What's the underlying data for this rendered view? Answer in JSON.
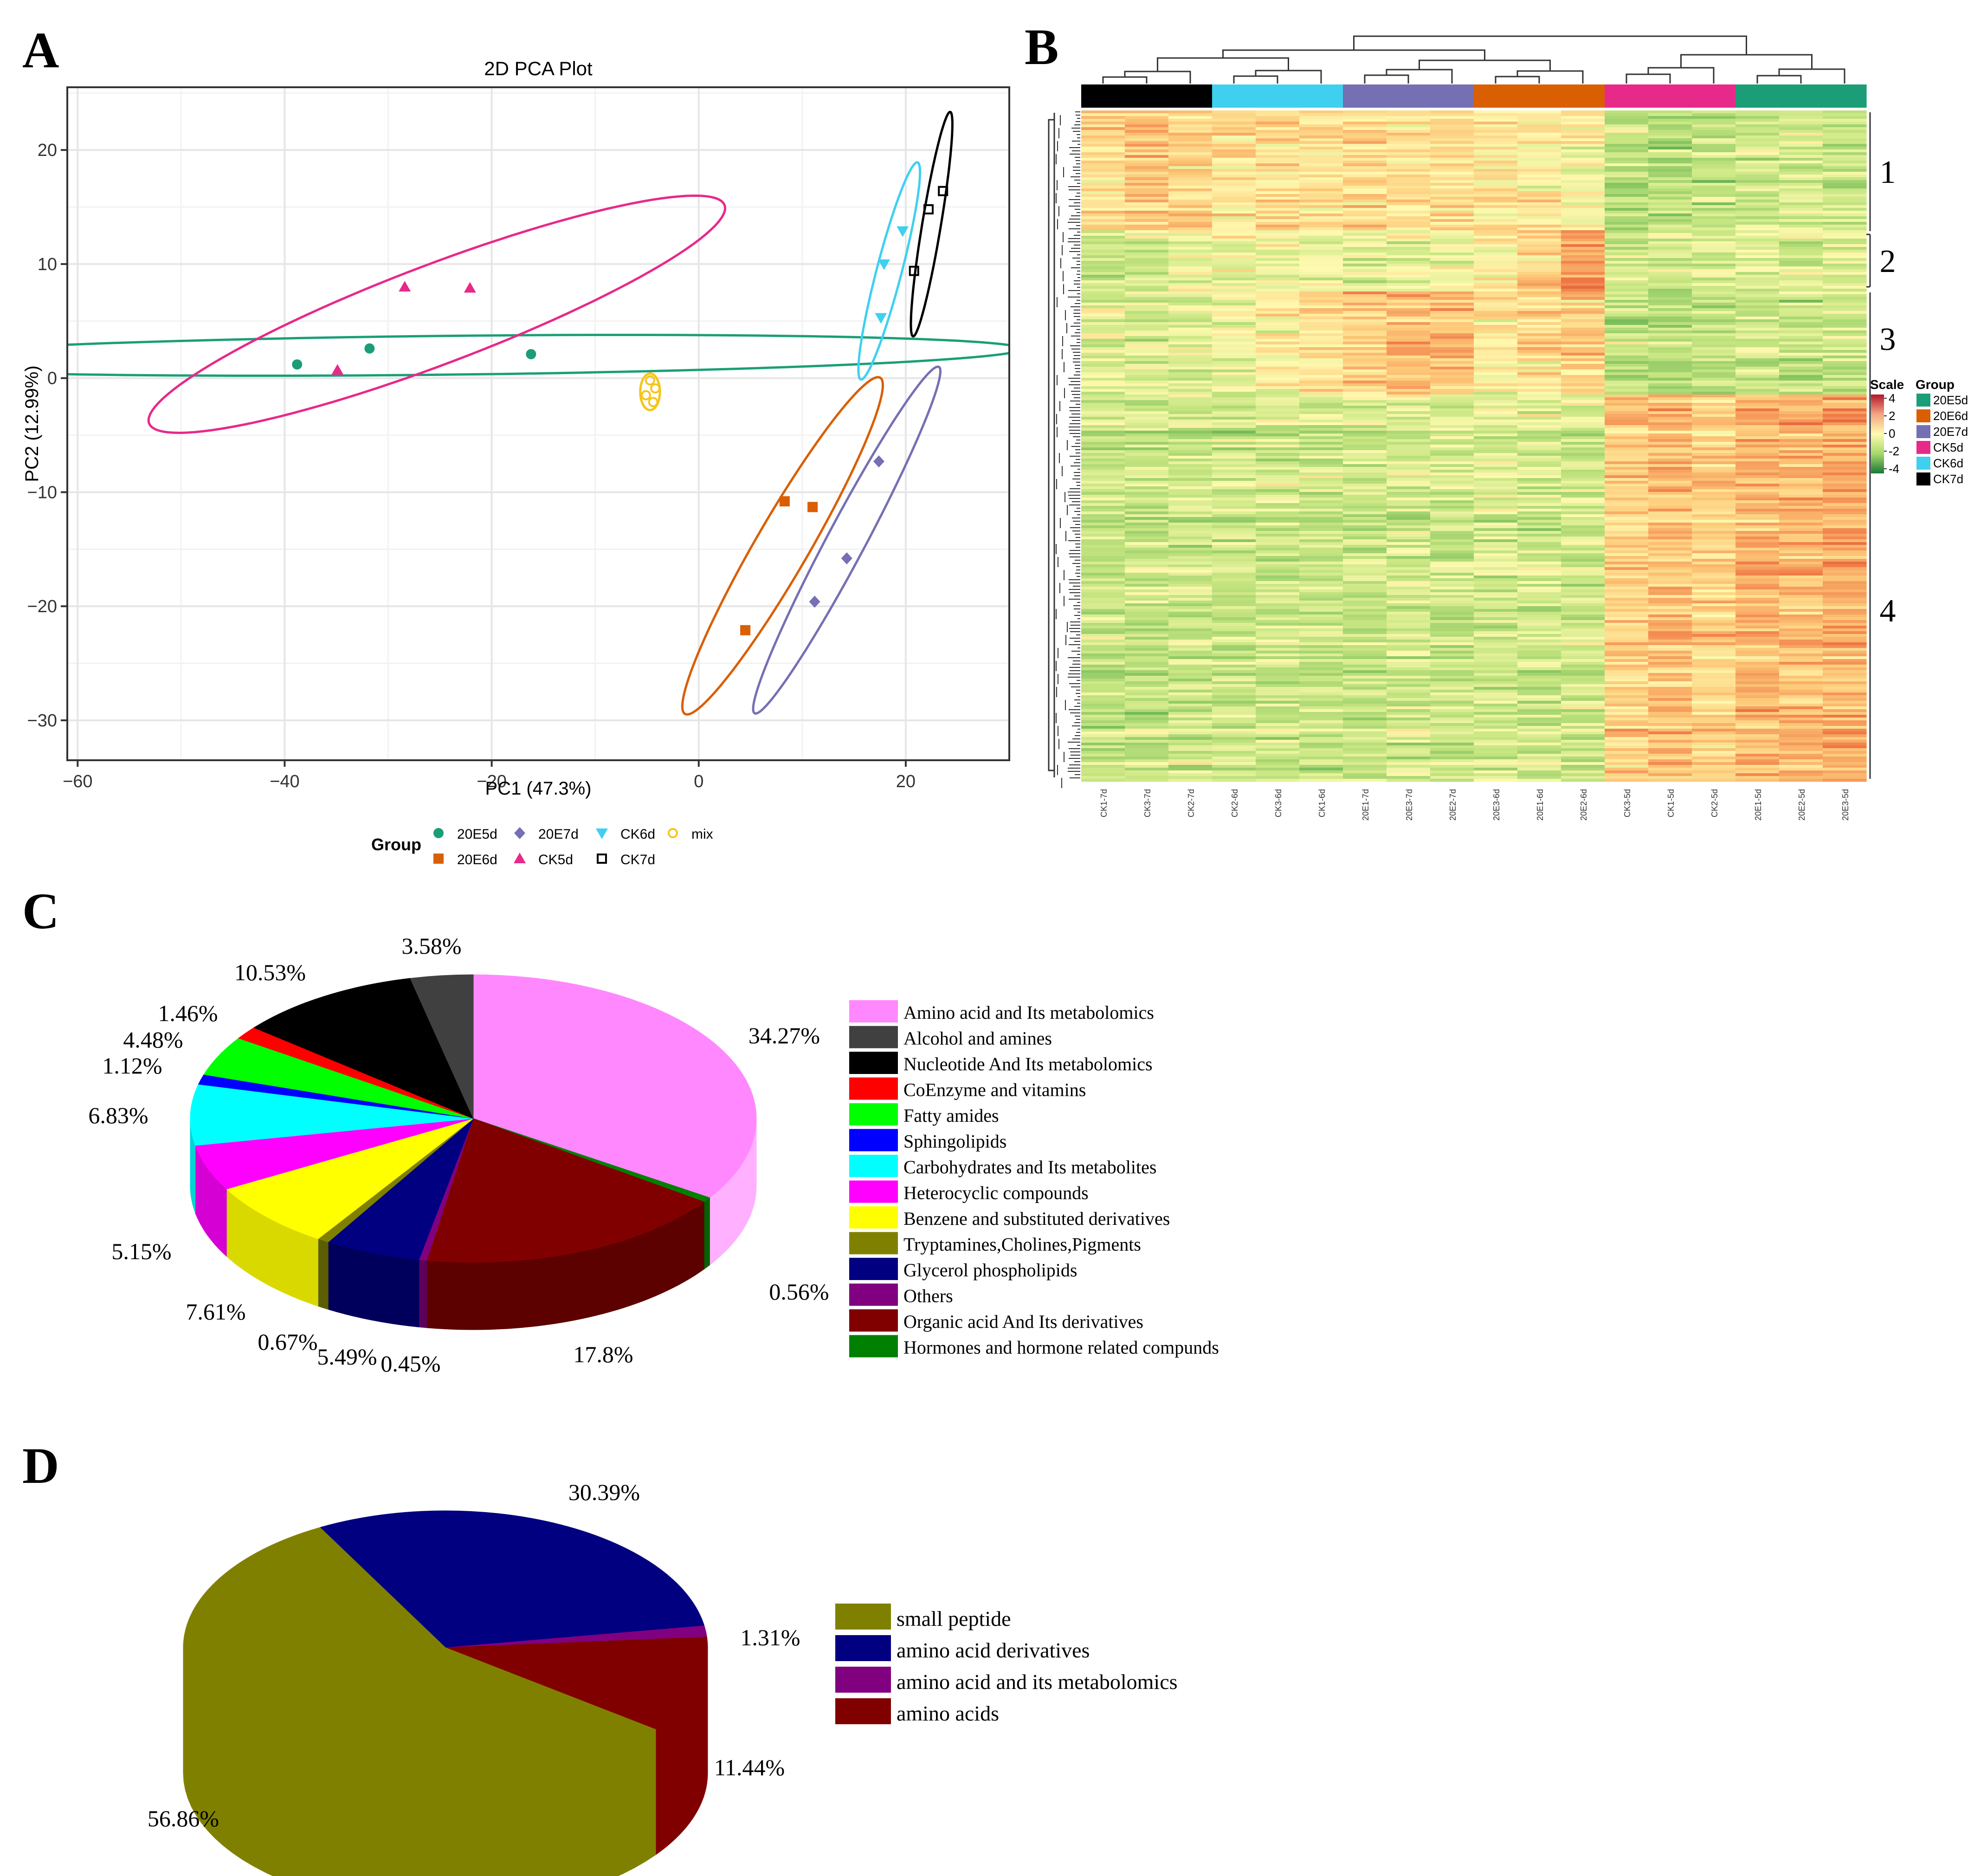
{
  "panels": {
    "a": "A",
    "b": "B",
    "c": "C",
    "d": "D"
  },
  "chart_data": [
    {
      "id": "pca",
      "type": "scatter",
      "title": "2D PCA Plot",
      "xlabel": "PC1 (47.3%)",
      "ylabel": "PC2 (12.99%)",
      "xlim": [
        -61,
        30
      ],
      "ylim": [
        -33.5,
        25.5
      ],
      "xticks": [
        -60,
        -40,
        -20,
        0,
        20
      ],
      "yticks": [
        -30,
        -20,
        -10,
        0,
        10,
        20
      ],
      "xtick_labels": [
        "−60",
        "−40",
        "−20",
        "0",
        "20"
      ],
      "ytick_labels": [
        "−30",
        "−20",
        "−10",
        "0",
        "10",
        "20"
      ],
      "legend_title": "Group",
      "series": [
        {
          "name": "20E5d",
          "color": "#1b9e77",
          "marker": "circle",
          "points": [
            [
              -38.8,
              1.2
            ],
            [
              -31.8,
              2.6
            ],
            [
              -16.2,
              2.1
            ]
          ],
          "ellipse": {
            "cx": -24.7,
            "cy": 2.0,
            "rx": 55.9,
            "ry": 1.7,
            "angle": 0.01
          }
        },
        {
          "name": "20E6d",
          "color": "#d95f02",
          "marker": "square",
          "points": [
            [
              8.3,
              -10.8
            ],
            [
              11.0,
              -11.3
            ],
            [
              4.5,
              -22.1
            ]
          ],
          "ellipse": {
            "cx": 8.1,
            "cy": -14.7,
            "rx": 17.5,
            "ry": 2.5,
            "angle": 1.0
          }
        },
        {
          "name": "20E7d",
          "color": "#7570b3",
          "marker": "diamond",
          "points": [
            [
              17.4,
              -7.3
            ],
            [
              14.3,
              -15.8
            ],
            [
              11.2,
              -19.6
            ]
          ],
          "ellipse": {
            "cx": 14.3,
            "cy": -14.2,
            "rx": 17.6,
            "ry": 1.8,
            "angle": 1.04
          }
        },
        {
          "name": "CK5d",
          "color": "#e7298a",
          "marker": "triangle",
          "points": [
            [
              -28.4,
              8.0
            ],
            [
              -22.1,
              7.9
            ],
            [
              -34.9,
              0.7
            ]
          ],
          "ellipse": {
            "cx": -25.3,
            "cy": 5.6,
            "rx": 29.4,
            "ry": 4.4,
            "angle": 0.33
          }
        },
        {
          "name": "CK6d",
          "color": "#3fd0f0",
          "marker": "triangle-down",
          "points": [
            [
              19.7,
              12.9
            ],
            [
              17.9,
              10.0
            ],
            [
              17.6,
              5.3
            ]
          ],
          "ellipse": {
            "cx": 18.4,
            "cy": 9.4,
            "rx": 9.9,
            "ry": 1.2,
            "angle": 1.29
          }
        },
        {
          "name": "CK7d",
          "color": "#000000",
          "marker": "open-square",
          "points": [
            [
              23.6,
              16.4
            ],
            [
              22.2,
              14.8
            ],
            [
              20.8,
              9.4
            ]
          ],
          "ellipse": {
            "cx": 22.5,
            "cy": 13.5,
            "rx": 10.0,
            "ry": 0.9,
            "angle": 1.39
          }
        },
        {
          "name": "mix",
          "color": "#f5c518",
          "marker": "open-circle",
          "points": [
            [
              -4.7,
              -0.2
            ],
            [
              -4.2,
              -0.9
            ],
            [
              -5.1,
              -1.5
            ],
            [
              -4.4,
              -2.1
            ]
          ],
          "ellipse": {
            "cx": -4.7,
            "cy": -1.2,
            "rx": 1.6,
            "ry": 0.95,
            "angle": 1.57
          }
        }
      ]
    },
    {
      "id": "heatmap",
      "type": "heatmap",
      "columns": [
        "CK1-7d",
        "CK3-7d",
        "CK2-7d",
        "CK2-6d",
        "CK3-6d",
        "CK1-6d",
        "20E1-7d",
        "20E3-7d",
        "20E2-7d",
        "20E3-6d",
        "20E1-6d",
        "20E2-6d",
        "CK3-5d",
        "CK1-5d",
        "CK2-5d",
        "20E1-5d",
        "20E2-5d",
        "20E3-5d"
      ],
      "column_groups": [
        "CK7d",
        "CK7d",
        "CK7d",
        "CK6d",
        "CK6d",
        "CK6d",
        "20E7d",
        "20E7d",
        "20E7d",
        "20E6d",
        "20E6d",
        "20E6d",
        "CK5d",
        "CK5d",
        "CK5d",
        "20E5d",
        "20E5d",
        "20E5d"
      ],
      "clusters": [
        "1",
        "2",
        "3",
        "4"
      ],
      "scale_title": "Scale",
      "scale_range": [
        -4,
        4
      ],
      "scale_ticks": [
        "4",
        "2",
        "0",
        "-2",
        "-4"
      ],
      "legend_title": "Group",
      "groups": [
        {
          "name": "20E5d",
          "color": "#1b9e77"
        },
        {
          "name": "20E6d",
          "color": "#d95f02"
        },
        {
          "name": "20E7d",
          "color": "#7570b3"
        },
        {
          "name": "CK5d",
          "color": "#e7298a"
        },
        {
          "name": "CK6d",
          "color": "#3fd0f0"
        },
        {
          "name": "CK7d",
          "color": "#000000"
        }
      ]
    },
    {
      "id": "pie-classes",
      "type": "pie",
      "slices": [
        {
          "label": "Amino acid  and Its metabolomics",
          "value": 34.27,
          "pct": "34.27%",
          "color": "#ff88ff",
          "side": "#ffb0ff"
        },
        {
          "label": "Hormones and hormone related compunds",
          "value": 0.56,
          "pct": "0.56%",
          "color": "#008000",
          "side": "#006400"
        },
        {
          "label": "Organic acid And Its derivatives",
          "value": 17.8,
          "pct": "17.8%",
          "color": "#800000",
          "side": "#5c0000"
        },
        {
          "label": "Others",
          "value": 0.45,
          "pct": "0.45%",
          "color": "#800080",
          "side": "#5c005c"
        },
        {
          "label": "Glycerol phospholipids",
          "value": 5.49,
          "pct": "5.49%",
          "color": "#000080",
          "side": "#00005c"
        },
        {
          "label": "Tryptamines,Cholines,Pigments",
          "value": 0.67,
          "pct": "0.67%",
          "color": "#808000",
          "side": "#5c5c00"
        },
        {
          "label": "Benzene and substituted derivatives",
          "value": 7.61,
          "pct": "7.61%",
          "color": "#ffff00",
          "side": "#d9d900"
        },
        {
          "label": "Heterocyclic compounds",
          "value": 5.15,
          "pct": "5.15%",
          "color": "#ff00ff",
          "side": "#d400d4"
        },
        {
          "label": "Carbohydrates and Its metabolites",
          "value": 6.83,
          "pct": "6.83%",
          "color": "#00ffff",
          "side": "#00d4d4"
        },
        {
          "label": "Sphingolipids",
          "value": 1.12,
          "pct": "1.12%",
          "color": "#0000ff",
          "side": "#0000c0"
        },
        {
          "label": "Fatty amides",
          "value": 4.48,
          "pct": "4.48%",
          "color": "#00ff00",
          "side": "#00c800"
        },
        {
          "label": "CoEnzyme and vitamins",
          "value": 1.46,
          "pct": "1.46%",
          "color": "#ff0000",
          "side": "#c80000"
        },
        {
          "label": "Nucleotide And Its metabolomics",
          "value": 10.53,
          "pct": "10.53%",
          "color": "#000000",
          "side": "#000000"
        },
        {
          "label": "Alcohol and amines",
          "value": 3.58,
          "pct": "3.58%",
          "color": "#404040",
          "side": "#303030"
        }
      ],
      "legend_order": [
        "Amino acid  and Its metabolomics",
        "Alcohol and amines",
        "Nucleotide And Its metabolomics",
        "CoEnzyme and vitamins",
        "Fatty amides",
        "Sphingolipids",
        "Carbohydrates and Its metabolites",
        "Heterocyclic compounds",
        "Benzene and substituted derivatives",
        "Tryptamines,Cholines,Pigments",
        "Glycerol phospholipids",
        "Others",
        "Organic acid And Its derivatives",
        "Hormones and hormone related compunds"
      ]
    },
    {
      "id": "pie-amino",
      "type": "pie",
      "slices": [
        {
          "label": "amino acid derivatives",
          "value": 30.39,
          "pct": "30.39%",
          "color": "#000080",
          "side": "#00006a"
        },
        {
          "label": "amino acid and its metabolomics",
          "value": 1.31,
          "pct": "1.31%",
          "color": "#800080",
          "side": "#6a006a"
        },
        {
          "label": "amino acids",
          "value": 11.44,
          "pct": "11.44%",
          "color": "#800000",
          "side": "#800000"
        },
        {
          "label": "small peptide",
          "value": 56.86,
          "pct": "56.86%",
          "color": "#808000",
          "side": "#808000"
        }
      ],
      "legend_order": [
        "small peptide",
        "amino acid derivatives",
        "amino acid and its metabolomics",
        "amino acids"
      ]
    }
  ]
}
